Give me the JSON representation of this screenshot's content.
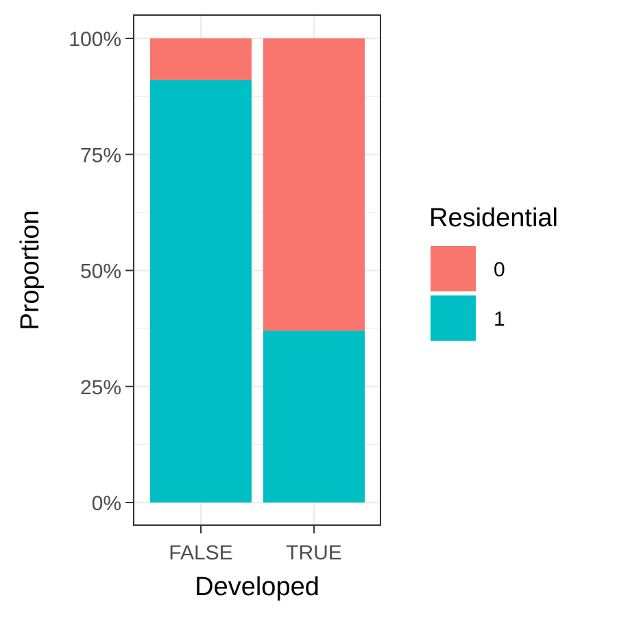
{
  "chart_data": {
    "type": "bar",
    "stacked": true,
    "categories": [
      "FALSE",
      "TRUE"
    ],
    "series": [
      {
        "name": "0",
        "values": [
          0.09,
          0.63
        ],
        "color": "#F8766D"
      },
      {
        "name": "1",
        "values": [
          0.91,
          0.37
        ],
        "color": "#00BFC4"
      }
    ],
    "xlabel": "Developed",
    "ylabel": "Proportion",
    "ylim": [
      0,
      1
    ],
    "yticks": [
      0,
      0.25,
      0.5,
      0.75,
      1
    ],
    "ytick_labels": [
      "0%",
      "25%",
      "50%",
      "75%",
      "100%"
    ],
    "grid": true,
    "legend": {
      "title": "Residential",
      "position": "right"
    }
  }
}
